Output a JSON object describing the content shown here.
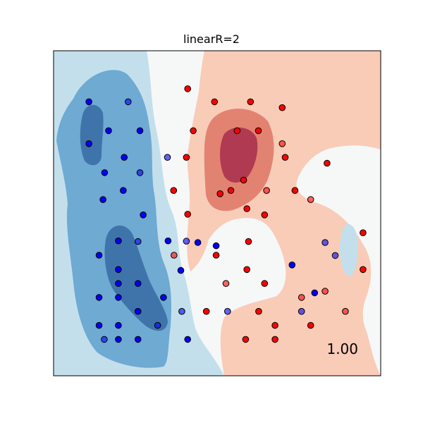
{
  "chart_data": {
    "type": "scatter",
    "title": "linearR=2",
    "xlabel": "",
    "ylabel": "",
    "xlim": [
      0,
      1
    ],
    "ylim": [
      0,
      1
    ],
    "grid": false,
    "axis_ticks": false,
    "score_text": "1.00",
    "colors": {
      "class_0": "#0000ff",
      "class_1": "#ff0000",
      "marker_edge": "#000000",
      "contour_blue_1": "#c4dfec",
      "contour_blue_2": "#6eaad2",
      "contour_blue_3": "#3f74ab",
      "neutral": "#f6f8f8",
      "contour_red_1": "#f9ccb8",
      "contour_red_2": "#e28371",
      "contour_red_3": "#b03a52"
    },
    "series": [
      {
        "class": 0,
        "color": "#0000ff",
        "split": "train",
        "points": [
          [
            0.108,
            0.843
          ],
          [
            0.168,
            0.754
          ],
          [
            0.264,
            0.754
          ],
          [
            0.108,
            0.714
          ],
          [
            0.216,
            0.672
          ],
          [
            0.156,
            0.625
          ],
          [
            0.213,
            0.57
          ],
          [
            0.151,
            0.542
          ],
          [
            0.274,
            0.495
          ],
          [
            0.198,
            0.415
          ],
          [
            0.35,
            0.415
          ],
          [
            0.441,
            0.41
          ],
          [
            0.139,
            0.371
          ],
          [
            0.198,
            0.327
          ],
          [
            0.389,
            0.324
          ],
          [
            0.198,
            0.284
          ],
          [
            0.258,
            0.284
          ],
          [
            0.139,
            0.241
          ],
          [
            0.198,
            0.241
          ],
          [
            0.336,
            0.241
          ],
          [
            0.258,
            0.198
          ],
          [
            0.139,
            0.155
          ],
          [
            0.198,
            0.155
          ],
          [
            0.258,
            0.112
          ],
          [
            0.198,
            0.112
          ],
          [
            0.41,
            0.112
          ],
          [
            0.497,
            0.4
          ],
          [
            0.729,
            0.341
          ],
          [
            0.798,
            0.255
          ]
        ]
      },
      {
        "class": 0,
        "color": "#0000ff",
        "split": "test",
        "points": [
          [
            0.228,
            0.843
          ],
          [
            0.348,
            0.672
          ],
          [
            0.155,
            0.112
          ],
          [
            0.264,
            0.625
          ],
          [
            0.258,
            0.413
          ],
          [
            0.318,
            0.155
          ],
          [
            0.83,
            0.41
          ],
          [
            0.392,
            0.198
          ],
          [
            0.861,
            0.37
          ],
          [
            0.532,
            0.198
          ],
          [
            0.758,
            0.198
          ],
          [
            0.406,
            0.414
          ]
        ]
      },
      {
        "class": 1,
        "color": "#ff0000",
        "split": "train",
        "points": [
          [
            0.41,
            0.883
          ],
          [
            0.492,
            0.843
          ],
          [
            0.602,
            0.843
          ],
          [
            0.699,
            0.825
          ],
          [
            0.427,
            0.754
          ],
          [
            0.561,
            0.754
          ],
          [
            0.626,
            0.754
          ],
          [
            0.708,
            0.672
          ],
          [
            0.406,
            0.672
          ],
          [
            0.542,
            0.57
          ],
          [
            0.581,
            0.602
          ],
          [
            0.509,
            0.56
          ],
          [
            0.738,
            0.57
          ],
          [
            0.367,
            0.57
          ],
          [
            0.41,
            0.497
          ],
          [
            0.591,
            0.514
          ],
          [
            0.645,
            0.495
          ],
          [
            0.836,
            0.654
          ],
          [
            0.946,
            0.44
          ],
          [
            0.596,
            0.413
          ],
          [
            0.497,
            0.371
          ],
          [
            0.591,
            0.327
          ],
          [
            0.645,
            0.284
          ],
          [
            0.946,
            0.327
          ],
          [
            0.627,
            0.198
          ],
          [
            0.677,
            0.155
          ],
          [
            0.587,
            0.112
          ],
          [
            0.677,
            0.112
          ],
          [
            0.786,
            0.155
          ],
          [
            0.467,
            0.198
          ]
        ]
      },
      {
        "class": 1,
        "color": "#ff0000",
        "split": "test",
        "points": [
          [
            0.699,
            0.714
          ],
          [
            0.651,
            0.57
          ],
          [
            0.786,
            0.542
          ],
          [
            0.758,
            0.241
          ],
          [
            0.527,
            0.284
          ],
          [
            0.368,
            0.371
          ],
          [
            0.83,
            0.26
          ],
          [
            0.892,
            0.198
          ]
        ]
      }
    ]
  }
}
